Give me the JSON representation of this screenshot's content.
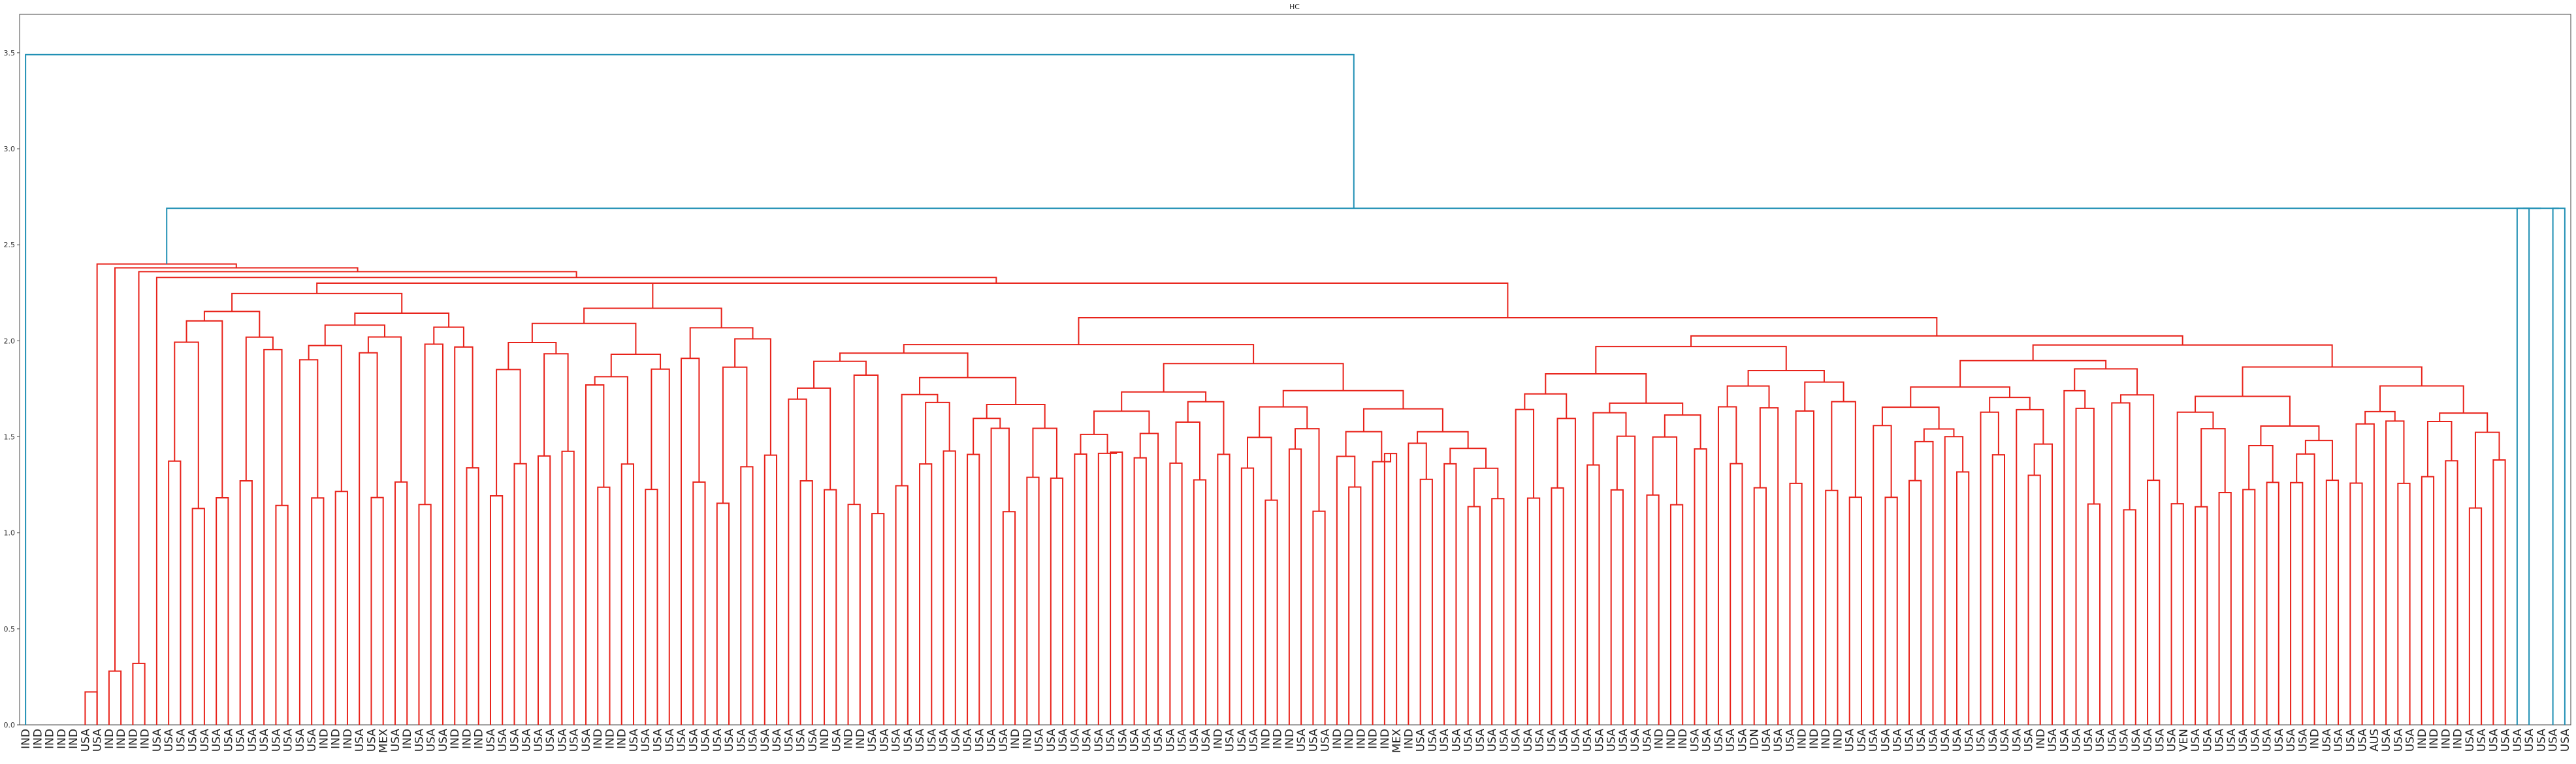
{
  "chart_data": {
    "type": "dendrogram",
    "title": "HC",
    "xlabel": "",
    "ylabel": "",
    "ylim": [
      0,
      3.7
    ],
    "yticks": [
      "0.0",
      "0.5",
      "1.0",
      "1.5",
      "2.0",
      "2.5",
      "3.0",
      "3.5"
    ],
    "grid": false,
    "colors": {
      "top_links": "#1f8fb4",
      "cluster_links": "#e8221a",
      "axes": "#444444"
    },
    "root_height": 3.49,
    "level2_height": 2.69,
    "right_group_height": 2.69,
    "cluster_top_height": 2.4,
    "leaves": [
      "IND",
      "IND",
      "IND",
      "IND",
      "IND",
      "USA",
      "USA",
      "IND",
      "IND",
      "IND",
      "IND",
      "USA",
      "USA",
      "USA",
      "USA",
      "USA",
      "USA",
      "USA",
      "USA",
      "USA",
      "USA",
      "USA",
      "USA",
      "USA",
      "USA",
      "IND",
      "IND",
      "IND",
      "USA",
      "USA",
      "MEX",
      "USA",
      "IND",
      "USA",
      "USA",
      "USA",
      "IND",
      "IND",
      "IND",
      "USA",
      "USA",
      "USA",
      "USA",
      "USA",
      "USA",
      "USA",
      "USA",
      "USA",
      "IND",
      "IND",
      "IND",
      "USA",
      "USA",
      "USA",
      "USA",
      "USA",
      "USA",
      "USA",
      "USA",
      "USA",
      "USA",
      "USA",
      "USA",
      "USA",
      "USA",
      "USA",
      "USA",
      "IND",
      "USA",
      "IND",
      "IND",
      "USA",
      "USA",
      "USA",
      "USA",
      "USA",
      "USA",
      "USA",
      "USA",
      "USA",
      "USA",
      "USA",
      "USA",
      "IND",
      "IND",
      "USA",
      "USA",
      "USA",
      "USA",
      "USA",
      "USA",
      "USA",
      "USA",
      "USA",
      "USA",
      "USA",
      "USA",
      "USA",
      "USA",
      "USA",
      "IND",
      "USA",
      "USA",
      "USA",
      "IND",
      "IND",
      "IND",
      "USA",
      "USA",
      "USA",
      "IND",
      "IND",
      "IND",
      "IND",
      "IND",
      "MEX",
      "IND",
      "USA",
      "USA",
      "USA",
      "USA",
      "USA",
      "USA",
      "USA",
      "USA",
      "USA",
      "USA",
      "USA",
      "USA",
      "USA",
      "USA",
      "USA",
      "USA",
      "USA",
      "USA",
      "USA",
      "USA",
      "IND",
      "IND",
      "IND",
      "USA",
      "USA",
      "USA",
      "USA",
      "USA",
      "IDN",
      "USA",
      "USA",
      "USA",
      "IND",
      "IND",
      "IND",
      "IND",
      "USA",
      "USA",
      "USA",
      "USA",
      "USA",
      "USA",
      "USA",
      "USA",
      "USA",
      "USA",
      "USA",
      "USA",
      "USA",
      "USA",
      "USA",
      "USA",
      "IND",
      "USA",
      "USA",
      "USA",
      "USA",
      "USA",
      "USA",
      "USA",
      "USA",
      "USA",
      "USA",
      "USA",
      "VEN",
      "USA",
      "USA",
      "USA",
      "USA",
      "USA",
      "USA",
      "USA",
      "USA",
      "USA",
      "USA",
      "IND",
      "USA",
      "USA",
      "USA",
      "USA",
      "AUS",
      "USA",
      "USA",
      "USA",
      "IND",
      "IND",
      "IND",
      "IND",
      "USA",
      "USA",
      "USA",
      "USA",
      "USA",
      "USA",
      "USA",
      "USA",
      "USA"
    ]
  }
}
